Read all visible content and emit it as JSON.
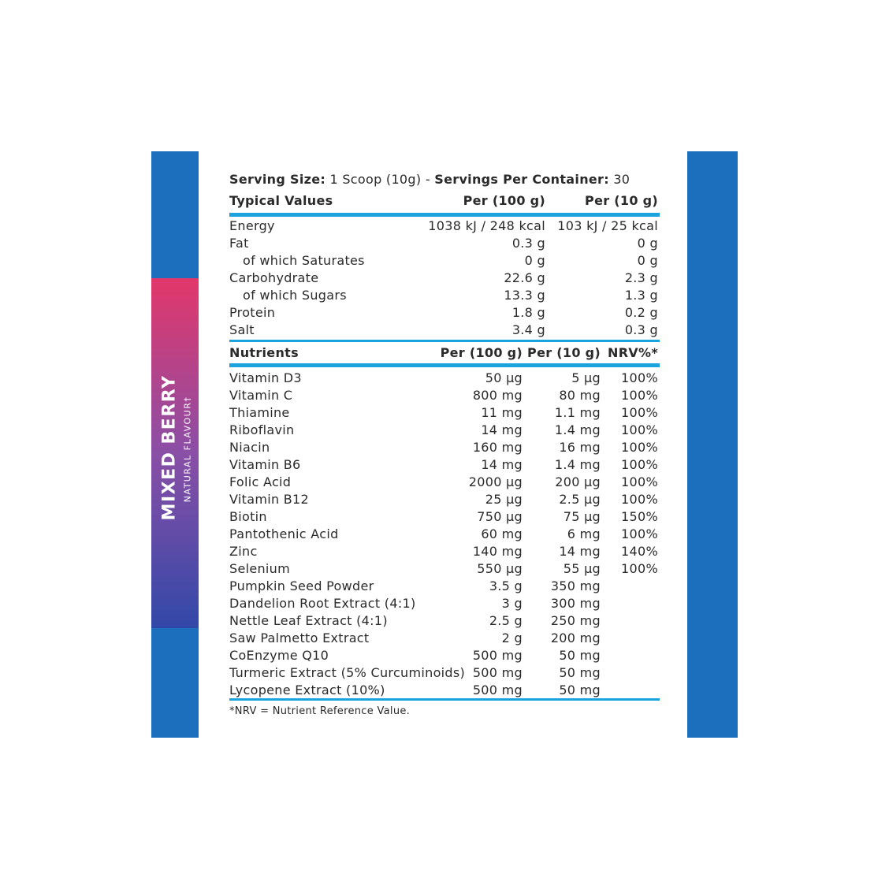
{
  "side": {
    "flavour": "MIXED BERRY",
    "note": "NATURAL FLAVOUR†"
  },
  "serving": {
    "size_label": "Serving Size:",
    "size_value": "1 Scoop (10g)",
    "separator": "-",
    "servings_label": "Servings Per Container:",
    "servings_value": "30"
  },
  "typical": {
    "headers": [
      "Typical Values",
      "Per (100 g)",
      "Per (10 g)"
    ],
    "rows": [
      {
        "cells": [
          "Energy",
          "1038 kJ / 248 kcal",
          "103 kJ / 25 kcal"
        ]
      },
      {
        "cells": [
          "Fat",
          "0.3 g",
          "0 g"
        ],
        "children": [
          [
            "of which Saturates",
            "0 g",
            "0 g"
          ]
        ]
      },
      {
        "cells": [
          "Carbohydrate",
          "22.6 g",
          "2.3 g"
        ],
        "children": [
          [
            "of which Sugars",
            "13.3 g",
            "1.3 g"
          ]
        ]
      },
      {
        "cells": [
          "Protein",
          "1.8 g",
          "0.2 g"
        ]
      },
      {
        "cells": [
          "Salt",
          "3.4 g",
          "0.3 g"
        ]
      }
    ]
  },
  "nutrients": {
    "headers": [
      "Nutrients",
      "Per (100 g)",
      "Per (10 g)",
      "NRV%*"
    ],
    "rows": [
      [
        "Vitamin D3",
        "50 µg",
        "5 µg",
        "100%"
      ],
      [
        "Vitamin C",
        "800 mg",
        "80 mg",
        "100%"
      ],
      [
        "Thiamine",
        "11 mg",
        "1.1 mg",
        "100%"
      ],
      [
        "Riboflavin",
        "14 mg",
        "1.4 mg",
        "100%"
      ],
      [
        "Niacin",
        "160 mg",
        "16 mg",
        "100%"
      ],
      [
        "Vitamin B6",
        "14 mg",
        "1.4 mg",
        "100%"
      ],
      [
        "Folic Acid",
        "2000 µg",
        "200 µg",
        "100%"
      ],
      [
        "Vitamin B12",
        "25 µg",
        "2.5 µg",
        "100%"
      ],
      [
        "Biotin",
        "750 µg",
        "75 µg",
        "150%"
      ],
      [
        "Pantothenic Acid",
        "60 mg",
        "6 mg",
        "100%"
      ],
      [
        "Zinc",
        "140 mg",
        "14 mg",
        "140%"
      ],
      [
        "Selenium",
        "550 µg",
        "55 µg",
        "100%"
      ],
      [
        "Pumpkin Seed Powder",
        "3.5 g",
        "350 mg"
      ],
      [
        "Dandelion Root Extract (4:1)",
        "3 g",
        "300 mg"
      ],
      [
        "Nettle Leaf Extract (4:1)",
        "2.5 g",
        "250 mg"
      ],
      [
        "Saw Palmetto Extract",
        "2 g",
        "200 mg"
      ],
      [
        "CoEnzyme Q10",
        "500 mg",
        "50 mg"
      ],
      [
        "Turmeric Extract (5% Curcuminoids)",
        "500 mg",
        "50 mg"
      ],
      [
        "Lycopene Extract (10%)",
        "500 mg",
        "50 mg"
      ]
    ]
  },
  "footnote": "*NRV = Nutrient Reference Value."
}
